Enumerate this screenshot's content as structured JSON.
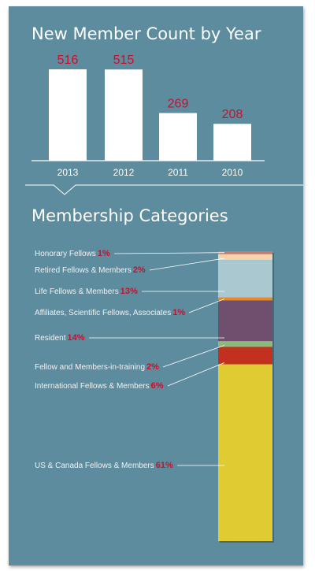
{
  "chart_data": [
    {
      "type": "bar",
      "title": "New Member Count by Year",
      "categories": [
        "2013",
        "2012",
        "2011",
        "2010"
      ],
      "values": [
        516,
        515,
        269,
        208
      ],
      "ylim": [
        0,
        600
      ],
      "grid": false,
      "colors": {
        "bar": "#ffffff",
        "value_label": "#c8102e"
      }
    },
    {
      "type": "bar",
      "stacked": true,
      "title": "Membership Categories",
      "unit": "%",
      "categories": [
        {
          "label": "Honorary Fellows",
          "value": 1,
          "pct": "1%",
          "color": "#c77a6e"
        },
        {
          "label": "Retired Fellows & Members",
          "value": 2,
          "pct": "2%",
          "color": "#f6d3a9"
        },
        {
          "label": "Life Fellows & Members",
          "value": 13,
          "pct": "13%",
          "color": "#a9c8d0"
        },
        {
          "label": "Affiliates, Scientific Fellows, Associates",
          "value": 1,
          "pct": "1%",
          "color": "#e6872b"
        },
        {
          "label": "Resident",
          "value": 14,
          "pct": "14%",
          "color": "#6e4f6d"
        },
        {
          "label": "Fellow and Members-in-training",
          "value": 2,
          "pct": "2%",
          "color": "#8db97a"
        },
        {
          "label": "International Fellows & Members",
          "value": 6,
          "pct": "6%",
          "color": "#c2301f"
        },
        {
          "label": "US & Canada Fellows & Members",
          "value": 61,
          "pct": "61%",
          "color": "#e0cb33"
        }
      ]
    }
  ]
}
